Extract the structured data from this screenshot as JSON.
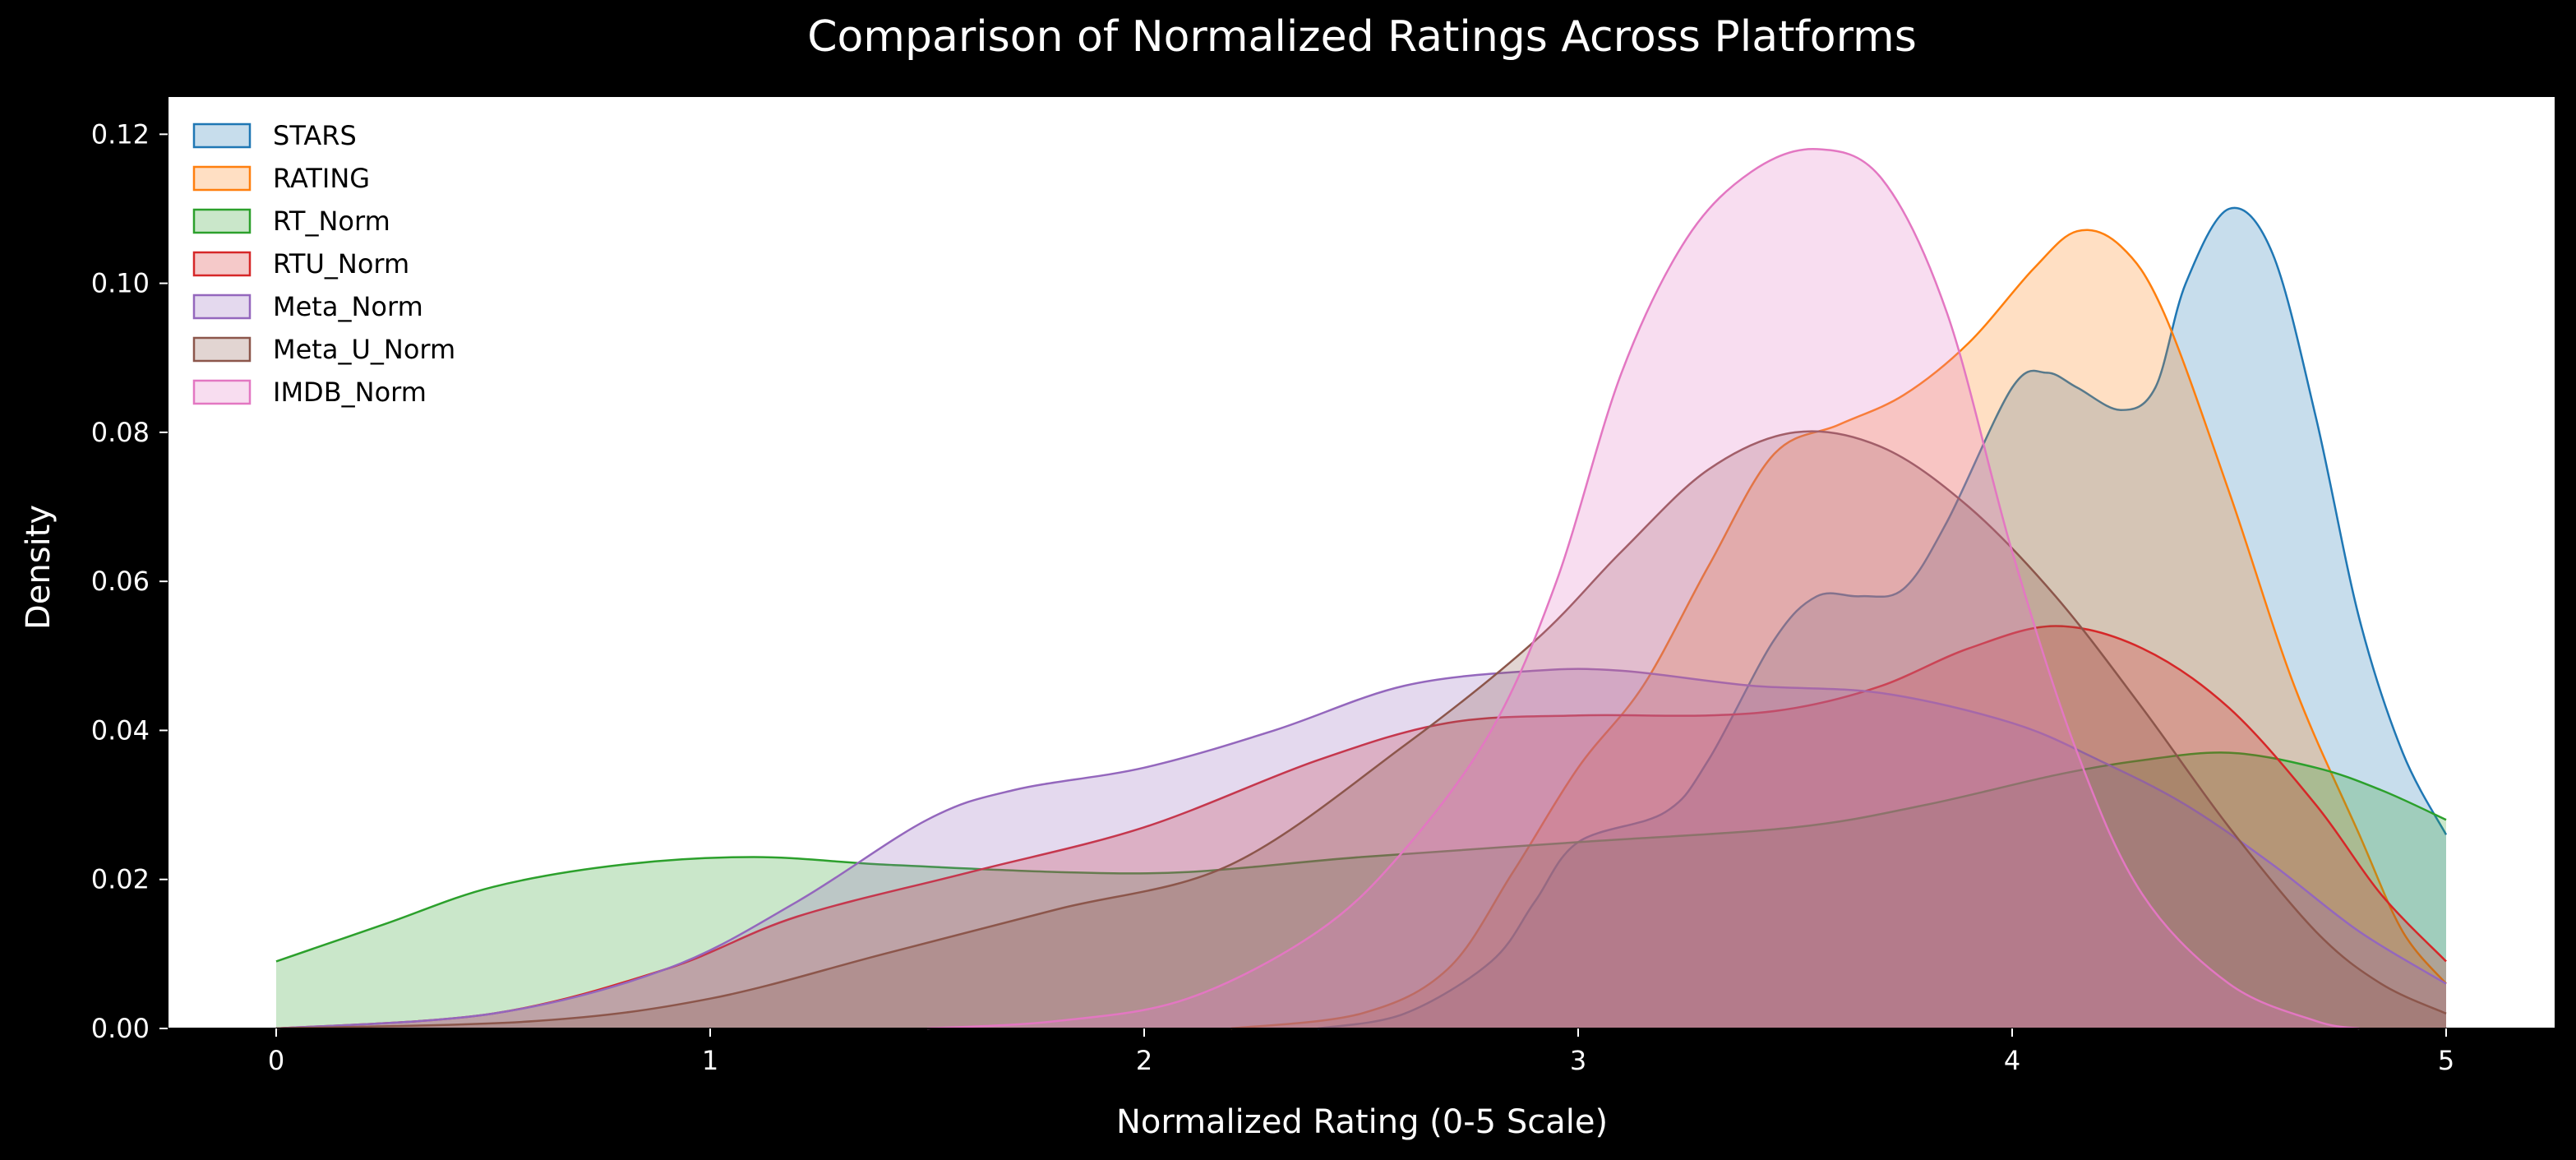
{
  "chart_data": {
    "type": "area",
    "title": "Comparison of Normalized Ratings Across Platforms",
    "xlabel": "Normalized Rating (0-5 Scale)",
    "ylabel": "Density",
    "xlim": [
      -0.25,
      5.25
    ],
    "ylim": [
      0,
      0.125
    ],
    "x_ticks": [
      0,
      1,
      2,
      3,
      4,
      5
    ],
    "x_tick_labels": [
      "0",
      "1",
      "2",
      "3",
      "4",
      "5"
    ],
    "y_ticks": [
      0,
      0.02,
      0.04,
      0.06,
      0.08,
      0.1,
      0.12
    ],
    "y_tick_labels": [
      "0.00",
      "0.02",
      "0.04",
      "0.06",
      "0.08",
      "0.10",
      "0.12"
    ],
    "grid": false,
    "legend_position": "upper-left",
    "series": [
      {
        "name": "STARS",
        "color": "#1f77b4",
        "fill_opacity": 0.25,
        "points": [
          [
            2.4,
            0
          ],
          [
            2.6,
            0.002
          ],
          [
            2.8,
            0.009
          ],
          [
            2.9,
            0.017
          ],
          [
            3.0,
            0.025
          ],
          [
            3.2,
            0.029
          ],
          [
            3.3,
            0.036
          ],
          [
            3.45,
            0.052
          ],
          [
            3.55,
            0.058
          ],
          [
            3.65,
            0.058
          ],
          [
            3.75,
            0.059
          ],
          [
            3.85,
            0.068
          ],
          [
            4.0,
            0.086
          ],
          [
            4.08,
            0.088
          ],
          [
            4.15,
            0.086
          ],
          [
            4.25,
            0.083
          ],
          [
            4.33,
            0.086
          ],
          [
            4.4,
            0.1
          ],
          [
            4.5,
            0.11
          ],
          [
            4.6,
            0.104
          ],
          [
            4.7,
            0.082
          ],
          [
            4.8,
            0.055
          ],
          [
            4.9,
            0.037
          ],
          [
            5.0,
            0.026
          ]
        ]
      },
      {
        "name": "RATING",
        "color": "#ff7f0e",
        "fill_opacity": 0.25,
        "points": [
          [
            2.2,
            0
          ],
          [
            2.5,
            0.002
          ],
          [
            2.7,
            0.008
          ],
          [
            2.85,
            0.021
          ],
          [
            3.0,
            0.035
          ],
          [
            3.15,
            0.046
          ],
          [
            3.3,
            0.062
          ],
          [
            3.45,
            0.077
          ],
          [
            3.6,
            0.081
          ],
          [
            3.75,
            0.085
          ],
          [
            3.9,
            0.092
          ],
          [
            4.05,
            0.102
          ],
          [
            4.15,
            0.107
          ],
          [
            4.25,
            0.105
          ],
          [
            4.35,
            0.096
          ],
          [
            4.5,
            0.072
          ],
          [
            4.65,
            0.046
          ],
          [
            4.8,
            0.026
          ],
          [
            4.9,
            0.013
          ],
          [
            5.0,
            0.006
          ]
        ]
      },
      {
        "name": "RT_Norm",
        "color": "#2ca02c",
        "fill_opacity": 0.25,
        "points": [
          [
            0,
            0.009
          ],
          [
            0.25,
            0.014
          ],
          [
            0.5,
            0.019
          ],
          [
            0.8,
            0.022
          ],
          [
            1.1,
            0.023
          ],
          [
            1.4,
            0.022
          ],
          [
            1.8,
            0.021
          ],
          [
            2.1,
            0.021
          ],
          [
            2.5,
            0.023
          ],
          [
            3.0,
            0.025
          ],
          [
            3.5,
            0.027
          ],
          [
            3.8,
            0.03
          ],
          [
            4.1,
            0.034
          ],
          [
            4.3,
            0.036
          ],
          [
            4.5,
            0.037
          ],
          [
            4.7,
            0.035
          ],
          [
            4.85,
            0.032
          ],
          [
            5.0,
            0.028
          ]
        ]
      },
      {
        "name": "RTU_Norm",
        "color": "#d62728",
        "fill_opacity": 0.25,
        "points": [
          [
            0,
            0
          ],
          [
            0.5,
            0.002
          ],
          [
            0.9,
            0.008
          ],
          [
            1.2,
            0.015
          ],
          [
            1.6,
            0.021
          ],
          [
            2.0,
            0.027
          ],
          [
            2.4,
            0.036
          ],
          [
            2.7,
            0.041
          ],
          [
            3.0,
            0.042
          ],
          [
            3.3,
            0.042
          ],
          [
            3.5,
            0.043
          ],
          [
            3.7,
            0.046
          ],
          [
            3.9,
            0.051
          ],
          [
            4.1,
            0.054
          ],
          [
            4.3,
            0.051
          ],
          [
            4.5,
            0.043
          ],
          [
            4.7,
            0.03
          ],
          [
            4.85,
            0.018
          ],
          [
            5.0,
            0.009
          ]
        ]
      },
      {
        "name": "Meta_Norm",
        "color": "#9467bd",
        "fill_opacity": 0.25,
        "points": [
          [
            0,
            0
          ],
          [
            0.5,
            0.002
          ],
          [
            0.9,
            0.008
          ],
          [
            1.2,
            0.017
          ],
          [
            1.5,
            0.028
          ],
          [
            1.7,
            0.032
          ],
          [
            2.0,
            0.035
          ],
          [
            2.3,
            0.04
          ],
          [
            2.6,
            0.046
          ],
          [
            2.9,
            0.048
          ],
          [
            3.1,
            0.048
          ],
          [
            3.4,
            0.046
          ],
          [
            3.7,
            0.045
          ],
          [
            4.0,
            0.041
          ],
          [
            4.2,
            0.036
          ],
          [
            4.4,
            0.03
          ],
          [
            4.6,
            0.022
          ],
          [
            4.8,
            0.013
          ],
          [
            5.0,
            0.006
          ]
        ]
      },
      {
        "name": "Meta_U_Norm",
        "color": "#8c564b",
        "fill_opacity": 0.25,
        "points": [
          [
            0,
            0
          ],
          [
            0.6,
            0.001
          ],
          [
            1.0,
            0.004
          ],
          [
            1.4,
            0.01
          ],
          [
            1.8,
            0.016
          ],
          [
            2.2,
            0.022
          ],
          [
            2.6,
            0.038
          ],
          [
            2.9,
            0.052
          ],
          [
            3.1,
            0.064
          ],
          [
            3.3,
            0.075
          ],
          [
            3.5,
            0.08
          ],
          [
            3.7,
            0.078
          ],
          [
            3.9,
            0.07
          ],
          [
            4.1,
            0.058
          ],
          [
            4.3,
            0.043
          ],
          [
            4.5,
            0.027
          ],
          [
            4.7,
            0.013
          ],
          [
            4.85,
            0.006
          ],
          [
            5.0,
            0.002
          ]
        ]
      },
      {
        "name": "IMDB_Norm",
        "color": "#e377c2",
        "fill_opacity": 0.25,
        "points": [
          [
            1.5,
            0
          ],
          [
            1.8,
            0.001
          ],
          [
            2.1,
            0.004
          ],
          [
            2.4,
            0.013
          ],
          [
            2.6,
            0.024
          ],
          [
            2.8,
            0.04
          ],
          [
            2.95,
            0.06
          ],
          [
            3.1,
            0.088
          ],
          [
            3.25,
            0.106
          ],
          [
            3.4,
            0.115
          ],
          [
            3.55,
            0.118
          ],
          [
            3.7,
            0.114
          ],
          [
            3.85,
            0.096
          ],
          [
            4.0,
            0.064
          ],
          [
            4.15,
            0.037
          ],
          [
            4.3,
            0.018
          ],
          [
            4.5,
            0.006
          ],
          [
            4.7,
            0.001
          ],
          [
            4.8,
            0
          ]
        ]
      }
    ]
  }
}
